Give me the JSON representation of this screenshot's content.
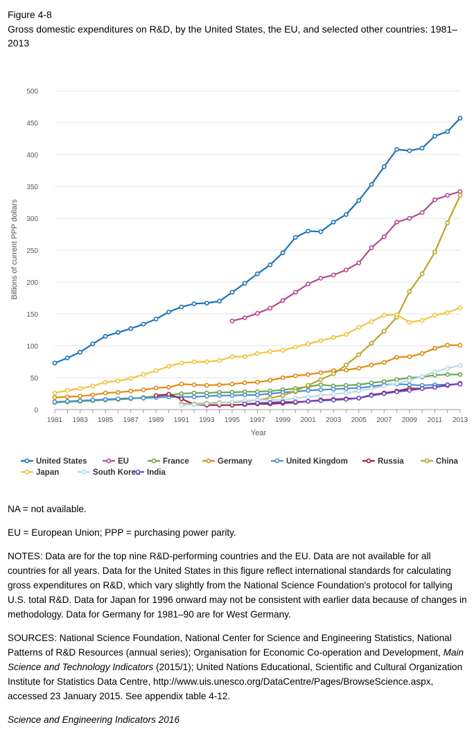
{
  "figure_label": "Figure 4-8",
  "title": "Gross domestic expenditures on R&D, by the United States, the EU, and selected other countries: 1981–2013",
  "notes": {
    "na": "NA = not available.",
    "abbrev": "EU = European Union; PPP = purchasing power parity.",
    "notes": "NOTES: Data are for the top nine R&D-performing countries and the EU. Data are not available for all countries for all years. Data for the United States in this figure reflect international standards for calculating gross expenditures on R&D, which vary slightly from the National Science Foundation's protocol for tallying U.S. total R&D. Data for Japan for 1996 onward may not be consistent with earlier data because of changes in methodology. Data for Germany for 1981–90 are for West Germany.",
    "sources_a": "SOURCES: National Science Foundation, National Center for Science and Engineering Statistics, National Patterns of R&D Resources (annual series); Organisation for Economic Co-operation and Development, ",
    "sources_em": "Main Science and Technology Indicators",
    "sources_b": " (2015/1); United Nations Educational, Scientific and Cultural Organization Institute for Statistics Data Centre, http://www.uis.unesco.org/DataCentre/Pages/BrowseScience.aspx, accessed 23 January 2015. See appendix table 4-12.",
    "credit": "Science and Engineering Indicators 2016"
  },
  "chart_data": {
    "type": "line",
    "xlabel": "Year",
    "ylabel": "Billions of current PPP dollars",
    "xlim": [
      1981,
      2013
    ],
    "ylim": [
      0,
      500
    ],
    "yticks": [
      0,
      50,
      100,
      150,
      200,
      250,
      300,
      350,
      400,
      450,
      500
    ],
    "xticks": [
      1981,
      1983,
      1985,
      1987,
      1989,
      1991,
      1993,
      1995,
      1997,
      1999,
      2001,
      2003,
      2005,
      2007,
      2009,
      2011,
      2013
    ],
    "grid": true,
    "legend_position": "bottom",
    "series": [
      {
        "name": "United States",
        "color": "#1a73b8",
        "start": 1981,
        "values": [
          73,
          81,
          90,
          103,
          115,
          121,
          127,
          134,
          142,
          153,
          161,
          166,
          167,
          170,
          184,
          198,
          213,
          227,
          246,
          270,
          280,
          279,
          294,
          306,
          328,
          353,
          381,
          408,
          406,
          410,
          429,
          436,
          457
        ]
      },
      {
        "name": "EU",
        "color": "#b5478f",
        "start": 1995,
        "values": [
          139,
          144,
          151,
          159,
          171,
          184,
          197,
          206,
          211,
          219,
          230,
          254,
          271,
          294,
          300,
          309,
          329,
          336,
          342
        ]
      },
      {
        "name": "France",
        "color": "#6aa84f",
        "start": 1981,
        "values": [
          11,
          12,
          13,
          14,
          15,
          16,
          17,
          19,
          21,
          23,
          25,
          26,
          26,
          27,
          27,
          28,
          28,
          29,
          31,
          33,
          36,
          39,
          37,
          38,
          39,
          42,
          44,
          47,
          50,
          51,
          54,
          55,
          55
        ]
      },
      {
        "name": "Germany",
        "color": "#e08a12",
        "start": 1981,
        "values": [
          19,
          20,
          21,
          23,
          26,
          27,
          29,
          31,
          34,
          35,
          40,
          39,
          38,
          39,
          40,
          42,
          43,
          46,
          50,
          53,
          55,
          58,
          61,
          62,
          65,
          70,
          74,
          82,
          83,
          88,
          96,
          101,
          101
        ]
      },
      {
        "name": "United Kingdom",
        "color": "#4a90cf",
        "start": 1981,
        "values": [
          12,
          13,
          14,
          15,
          16,
          17,
          18,
          18,
          19,
          20,
          20,
          20,
          21,
          22,
          22,
          23,
          23,
          25,
          27,
          28,
          30,
          31,
          32,
          33,
          34,
          36,
          39,
          40,
          39,
          38,
          39,
          39,
          40
        ]
      },
      {
        "name": "Russia",
        "color": "#9e1b4f",
        "start": 1989,
        "values": [
          22,
          24,
          17,
          8,
          7,
          7,
          7,
          8,
          9,
          9,
          10,
          11,
          13,
          15,
          16,
          17,
          18,
          23,
          26,
          29,
          33,
          33,
          35,
          38,
          41
        ]
      },
      {
        "name": "China",
        "color": "#b8a52a",
        "start": 1991,
        "values": [
          9,
          9,
          10,
          11,
          11,
          13,
          15,
          18,
          22,
          29,
          38,
          47,
          56,
          70,
          86,
          104,
          123,
          145,
          185,
          213,
          247,
          293,
          336
        ]
      },
      {
        "name": "Japan",
        "color": "#f0c43f",
        "start": 1981,
        "values": [
          26,
          30,
          33,
          37,
          43,
          45,
          49,
          55,
          61,
          68,
          73,
          75,
          75,
          77,
          83,
          83,
          88,
          91,
          93,
          98,
          103,
          108,
          113,
          118,
          129,
          138,
          148,
          149,
          137,
          140,
          148,
          152,
          160
        ]
      },
      {
        "name": "South Korea",
        "color": "#b8d8e8",
        "start": 1991,
        "values": [
          7,
          8,
          9,
          10,
          12,
          14,
          15,
          15,
          15,
          18,
          20,
          22,
          24,
          26,
          29,
          33,
          37,
          41,
          46,
          52,
          59,
          65,
          69
        ]
      },
      {
        "name": "India",
        "color": "#6a4bbd",
        "start": 1996,
        "values": [
          9,
          10,
          11,
          12,
          12,
          13,
          14,
          15,
          16,
          18,
          22,
          25,
          28,
          30,
          33,
          35,
          39,
          40
        ]
      }
    ]
  }
}
